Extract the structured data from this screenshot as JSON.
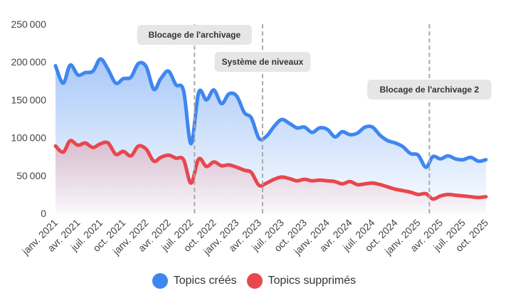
{
  "chart_data": {
    "type": "area",
    "title": "",
    "xlabel": "",
    "ylabel": "",
    "ylim": [
      0,
      250000
    ],
    "y_ticks": [
      "0",
      "50000",
      "100000",
      "150000",
      "200000",
      "250000"
    ],
    "x_ticks": [
      "janv. 2021",
      "avr. 2021",
      "juil. 2021",
      "oct. 2021",
      "janv. 2022",
      "avr. 2022",
      "juil. 2022",
      "oct. 2022",
      "janv. 2023",
      "avr. 2023",
      "juil. 2023",
      "oct. 2023",
      "janv. 2024",
      "avr. 2024",
      "juil. 2024",
      "oct. 2024",
      "janv. 2025",
      "avr. 2025",
      "juil. 2025",
      "oct. 2025"
    ],
    "grid": false,
    "legend_position": "bottom",
    "x": [
      "2021-01-01",
      "2021-02-01",
      "2021-03-01",
      "2021-04-01",
      "2021-05-01",
      "2021-06-01",
      "2021-07-01",
      "2021-08-01",
      "2021-09-01",
      "2021-10-01",
      "2021-11-01",
      "2021-12-01",
      "2022-01-01",
      "2022-02-01",
      "2022-03-01",
      "2022-04-01",
      "2022-05-01",
      "2022-06-01",
      "2022-07-01",
      "2022-08-01",
      "2022-09-01",
      "2022-10-01",
      "2022-11-01",
      "2022-12-01",
      "2023-01-01",
      "2023-02-01",
      "2023-03-01",
      "2023-04-01",
      "2023-05-01",
      "2023-06-01",
      "2023-07-01",
      "2023-08-01",
      "2023-09-01",
      "2023-10-01",
      "2023-11-01",
      "2023-12-01",
      "2024-01-01",
      "2024-02-01",
      "2024-03-01",
      "2024-04-01",
      "2024-05-01",
      "2024-06-01",
      "2024-07-01",
      "2024-08-01",
      "2024-09-01",
      "2024-10-01",
      "2024-11-01",
      "2024-12-01",
      "2025-01-01",
      "2025-02-01",
      "2025-03-01",
      "2025-04-01",
      "2025-05-01",
      "2025-06-01",
      "2025-07-01",
      "2025-08-01",
      "2025-09-01",
      "2025-10-01"
    ],
    "series": [
      {
        "name": "Topics créés",
        "color": "#3f86f0",
        "values": [
          195000,
          172000,
          196000,
          183000,
          186000,
          188000,
          204000,
          190000,
          172000,
          178000,
          180000,
          198000,
          194000,
          164000,
          178000,
          188000,
          170000,
          162000,
          92000,
          160000,
          150000,
          163000,
          145000,
          158000,
          155000,
          133000,
          126000,
          99000,
          102000,
          115000,
          124000,
          119000,
          113000,
          114000,
          107000,
          113000,
          111000,
          101000,
          108000,
          104000,
          106000,
          114000,
          114000,
          103000,
          96000,
          93000,
          88000,
          79000,
          77000,
          61000,
          75000,
          72000,
          76000,
          72000,
          71000,
          74000,
          69000,
          71000
        ]
      },
      {
        "name": "Topics supprimés",
        "color": "#e8474d",
        "values": [
          89000,
          81000,
          96000,
          90000,
          93000,
          87000,
          92000,
          93000,
          78000,
          82000,
          76000,
          89000,
          85000,
          69000,
          74000,
          77000,
          73000,
          71000,
          40000,
          72000,
          62000,
          68000,
          63000,
          64000,
          61000,
          57000,
          54000,
          37000,
          40000,
          45000,
          48000,
          46000,
          43000,
          45000,
          43000,
          44000,
          43000,
          42000,
          39000,
          42000,
          38000,
          39000,
          40000,
          38000,
          35000,
          32000,
          30000,
          28000,
          25000,
          26000,
          19000,
          23000,
          25000,
          24000,
          23000,
          22000,
          21000,
          22000
        ]
      }
    ],
    "annotations": [
      {
        "label": "Blocage de l'archivage",
        "x": "2022-07-15"
      },
      {
        "label": "Système de niveaux",
        "x": "2023-04-15"
      },
      {
        "label": "Blocage de l'archivage 2",
        "x": "2025-02-15"
      }
    ]
  }
}
